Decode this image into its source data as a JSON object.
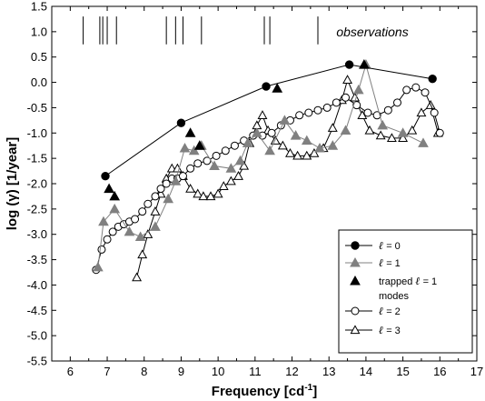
{
  "chart_data": {
    "type": "line",
    "xlabel": "Frequency [cd",
    "xlabel_sup": "-1",
    "xlabel_end": "]",
    "ylabel": "log (γ) [1/year]",
    "xlim": [
      5.5,
      17
    ],
    "ylim": [
      -5.5,
      1.5
    ],
    "xticks": [
      6,
      7,
      8,
      9,
      10,
      11,
      12,
      13,
      14,
      15,
      16,
      17
    ],
    "yticks": [
      -5.5,
      -5.0,
      -4.5,
      -4.0,
      -3.5,
      -3.0,
      -2.5,
      -2.0,
      -1.5,
      -1.0,
      -0.5,
      0.0,
      0.5,
      1.0,
      1.5
    ],
    "grid": false,
    "legend_position": "bottom-right",
    "annotation": "observations",
    "observations": [
      6.35,
      6.8,
      6.88,
      7.0,
      7.25,
      8.6,
      8.85,
      9.05,
      9.55,
      11.25,
      11.4,
      12.7
    ],
    "series": [
      {
        "name": "ℓ = 0",
        "marker": "filled-circle",
        "color": "#000000",
        "points": [
          [
            6.95,
            -1.85
          ],
          [
            9.0,
            -0.8
          ],
          [
            11.3,
            -0.08
          ],
          [
            13.55,
            0.35
          ],
          [
            15.8,
            0.07
          ]
        ]
      },
      {
        "name": "ℓ = 1",
        "marker": "filled-triangle",
        "color": "#808080",
        "points": [
          [
            6.75,
            -3.65
          ],
          [
            6.9,
            -2.75
          ],
          [
            7.2,
            -2.5
          ],
          [
            7.6,
            -2.95
          ],
          [
            7.9,
            -3.05
          ],
          [
            8.3,
            -2.85
          ],
          [
            8.65,
            -2.3
          ],
          [
            8.85,
            -1.95
          ],
          [
            9.1,
            -1.3
          ],
          [
            9.35,
            -1.35
          ],
          [
            9.55,
            -1.25
          ],
          [
            9.9,
            -1.65
          ],
          [
            10.35,
            -1.7
          ],
          [
            10.6,
            -1.55
          ],
          [
            10.8,
            -1.2
          ],
          [
            11.05,
            -1.0
          ],
          [
            11.4,
            -1.35
          ],
          [
            11.8,
            -0.75
          ],
          [
            12.1,
            -1.05
          ],
          [
            12.4,
            -1.15
          ],
          [
            12.75,
            -1.3
          ],
          [
            13.1,
            -1.25
          ],
          [
            13.45,
            -0.95
          ],
          [
            13.8,
            -0.15
          ],
          [
            14.0,
            0.35
          ],
          [
            14.45,
            -0.85
          ],
          [
            15.0,
            -1.0
          ],
          [
            15.55,
            -1.2
          ]
        ]
      },
      {
        "name": "trapped ℓ = 1 modes",
        "marker": "filled-triangle",
        "color": "#000000",
        "points": [
          [
            7.05,
            -2.1
          ],
          [
            7.2,
            -2.25
          ],
          [
            9.25,
            -1.0
          ],
          [
            9.5,
            -1.25
          ],
          [
            11.6,
            -0.12
          ],
          [
            13.95,
            0.35
          ]
        ]
      },
      {
        "name": "ℓ = 2",
        "marker": "open-circle",
        "color": "#000000",
        "points": [
          [
            6.7,
            -3.7
          ],
          [
            6.85,
            -3.3
          ],
          [
            7.0,
            -3.1
          ],
          [
            7.15,
            -2.95
          ],
          [
            7.3,
            -2.85
          ],
          [
            7.45,
            -2.8
          ],
          [
            7.6,
            -2.75
          ],
          [
            7.75,
            -2.7
          ],
          [
            7.95,
            -2.55
          ],
          [
            8.1,
            -2.4
          ],
          [
            8.3,
            -2.25
          ],
          [
            8.45,
            -2.1
          ],
          [
            8.6,
            -2.0
          ],
          [
            8.75,
            -1.9
          ],
          [
            8.9,
            -1.9
          ],
          [
            9.05,
            -1.85
          ],
          [
            9.25,
            -1.7
          ],
          [
            9.45,
            -1.6
          ],
          [
            9.7,
            -1.55
          ],
          [
            9.95,
            -1.45
          ],
          [
            10.2,
            -1.35
          ],
          [
            10.45,
            -1.25
          ],
          [
            10.7,
            -1.15
          ],
          [
            10.95,
            -1.05
          ],
          [
            11.2,
            -1.05
          ],
          [
            11.45,
            -1.0
          ],
          [
            11.7,
            -0.85
          ],
          [
            11.95,
            -0.75
          ],
          [
            12.2,
            -0.65
          ],
          [
            12.45,
            -0.6
          ],
          [
            12.7,
            -0.55
          ],
          [
            12.95,
            -0.5
          ],
          [
            13.2,
            -0.4
          ],
          [
            13.45,
            -0.3
          ],
          [
            13.75,
            -0.45
          ],
          [
            14.05,
            -0.6
          ],
          [
            14.3,
            -0.65
          ],
          [
            14.6,
            -0.55
          ],
          [
            14.85,
            -0.4
          ],
          [
            15.1,
            -0.15
          ],
          [
            15.35,
            -0.1
          ],
          [
            15.6,
            -0.2
          ],
          [
            15.85,
            -0.6
          ],
          [
            16.0,
            -1.0
          ]
        ]
      },
      {
        "name": "ℓ = 3",
        "marker": "open-triangle",
        "color": "#000000",
        "points": [
          [
            7.8,
            -3.85
          ],
          [
            7.95,
            -3.4
          ],
          [
            8.1,
            -3.0
          ],
          [
            8.3,
            -2.55
          ],
          [
            8.45,
            -2.2
          ],
          [
            8.6,
            -1.9
          ],
          [
            8.75,
            -1.7
          ],
          [
            8.9,
            -1.7
          ],
          [
            9.05,
            -1.85
          ],
          [
            9.25,
            -2.1
          ],
          [
            9.45,
            -2.2
          ],
          [
            9.6,
            -2.25
          ],
          [
            9.8,
            -2.25
          ],
          [
            10.0,
            -2.2
          ],
          [
            10.15,
            -2.05
          ],
          [
            10.35,
            -1.95
          ],
          [
            10.55,
            -1.85
          ],
          [
            10.7,
            -1.65
          ],
          [
            10.85,
            -1.2
          ],
          [
            11.05,
            -0.85
          ],
          [
            11.2,
            -0.65
          ],
          [
            11.35,
            -0.95
          ],
          [
            11.55,
            -1.15
          ],
          [
            11.75,
            -1.25
          ],
          [
            11.95,
            -1.4
          ],
          [
            12.15,
            -1.45
          ],
          [
            12.4,
            -1.45
          ],
          [
            12.6,
            -1.4
          ],
          [
            12.85,
            -1.3
          ],
          [
            13.1,
            -0.9
          ],
          [
            13.35,
            -0.35
          ],
          [
            13.5,
            0.05
          ],
          [
            13.7,
            -0.3
          ],
          [
            13.9,
            -0.65
          ],
          [
            14.1,
            -0.95
          ],
          [
            14.4,
            -1.05
          ],
          [
            14.7,
            -1.1
          ],
          [
            15.0,
            -1.1
          ],
          [
            15.25,
            -0.95
          ],
          [
            15.5,
            -0.6
          ],
          [
            15.75,
            -0.45
          ],
          [
            15.95,
            -1.0
          ]
        ]
      }
    ],
    "legend": [
      {
        "prefix": "",
        "ell": "ℓ",
        "text": " = 0",
        "marker": "filled-circle",
        "color": "#000000",
        "line": true
      },
      {
        "prefix": "",
        "ell": "ℓ",
        "text": " = 1",
        "marker": "filled-triangle",
        "color": "#808080",
        "line": true
      },
      {
        "prefix": "trapped ",
        "ell": "ℓ",
        "text": " = 1",
        "text2": "modes",
        "marker": "filled-triangle",
        "color": "#000000",
        "line": false
      },
      {
        "prefix": "",
        "ell": "ℓ",
        "text": " = 2",
        "marker": "open-circle",
        "color": "#000000",
        "line": true
      },
      {
        "prefix": "",
        "ell": "ℓ",
        "text": " = 3",
        "marker": "open-triangle",
        "color": "#000000",
        "line": true
      }
    ]
  }
}
